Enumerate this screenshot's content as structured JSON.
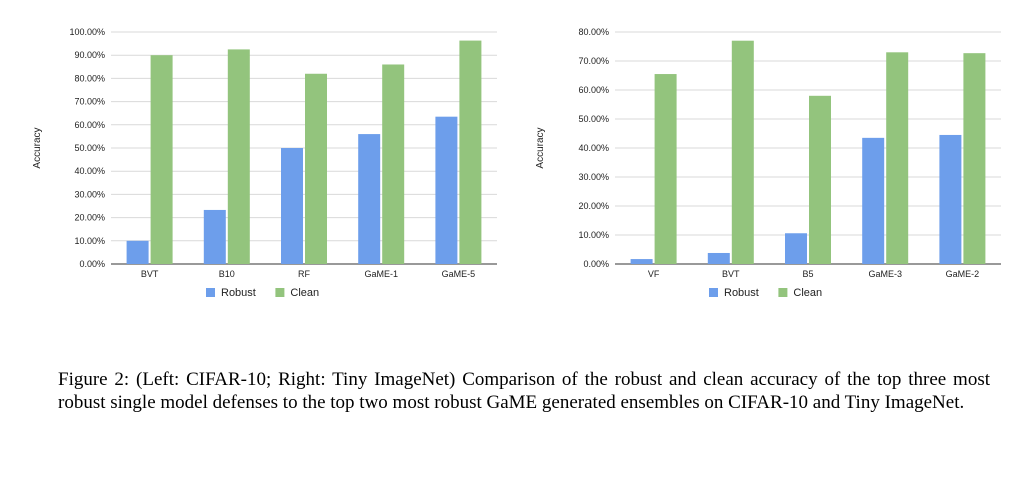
{
  "colors": {
    "robust": "#6d9eeb",
    "clean": "#93c47d",
    "grid": "#d9d9d9",
    "axis": "#333333"
  },
  "chart_data": [
    {
      "type": "bar",
      "categories": [
        "BVT",
        "B10",
        "RF",
        "GaME-1",
        "GaME-5"
      ],
      "series": [
        {
          "name": "Robust",
          "values": [
            10.0,
            23.3,
            50.0,
            56.0,
            63.5
          ]
        },
        {
          "name": "Clean",
          "values": [
            90.0,
            92.5,
            82.0,
            86.0,
            96.3
          ]
        }
      ],
      "ylabel": "Accuracy",
      "ylim": [
        0,
        100
      ],
      "yticks": [
        "0.00%",
        "10.00%",
        "20.00%",
        "30.00%",
        "40.00%",
        "50.00%",
        "60.00%",
        "70.00%",
        "80.00%",
        "90.00%",
        "100.00%"
      ],
      "grid": true,
      "legend": "bottom"
    },
    {
      "type": "bar",
      "categories": [
        "VF",
        "BVT",
        "B5",
        "GaME-3",
        "GaME-2"
      ],
      "series": [
        {
          "name": "Robust",
          "values": [
            1.7,
            3.8,
            10.6,
            43.5,
            44.5
          ]
        },
        {
          "name": "Clean",
          "values": [
            65.5,
            77.0,
            58.0,
            73.0,
            72.7
          ]
        }
      ],
      "ylabel": "Accuracy",
      "ylim": [
        0,
        80
      ],
      "yticks": [
        "0.00%",
        "10.00%",
        "20.00%",
        "30.00%",
        "40.00%",
        "50.00%",
        "60.00%",
        "70.00%",
        "80.00%"
      ],
      "grid": true,
      "legend": "bottom"
    }
  ],
  "caption": "Figure 2: (Left: CIFAR-10; Right: Tiny ImageNet) Comparison of the robust and clean accuracy of the top three most robust single model defenses to the top two most robust GaME generated ensembles on CIFAR-10 and Tiny ImageNet."
}
